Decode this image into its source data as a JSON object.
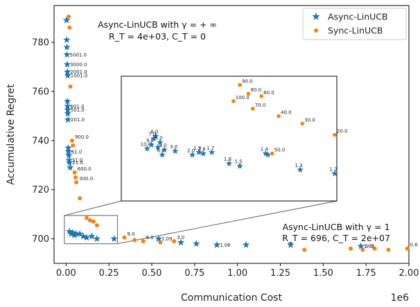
{
  "chart_data": {
    "type": "scatter",
    "xlabel": "Communication Cost",
    "ylabel": "Accumulative Regret",
    "x_multiplier_label": "1e6",
    "xlim": [
      -0.07,
      2.0
    ],
    "ylim": [
      690,
      795
    ],
    "x_ticks": [
      0.0,
      0.25,
      0.5,
      0.75,
      1.0,
      1.25,
      1.5,
      1.75,
      2.0
    ],
    "x_tick_labels": [
      "0.00",
      "0.25",
      "0.50",
      "0.75",
      "1.00",
      "1.25",
      "1.50",
      "1.75",
      "2.00"
    ],
    "y_ticks": [
      700,
      720,
      740,
      760,
      780
    ],
    "y_tick_labels": [
      "700",
      "720",
      "740",
      "760",
      "780"
    ],
    "legend_position": "top-right",
    "colors": {
      "async": "#1f77b4",
      "sync": "#ff7f0e"
    },
    "annotations": [
      {
        "text": "Async-LinUCB with γ = + ∞",
        "position": "top-center"
      },
      {
        "text": "R_T = 4e+03, C_T = 0",
        "position": "top-center"
      },
      {
        "text": "Async-LinUCB with γ = 1",
        "position": "lower-right"
      },
      {
        "text": "R_T = 696, C_T = 2e+07",
        "position": "lower-right"
      }
    ],
    "series": [
      {
        "name": "Async-LinUCB",
        "marker": "star",
        "points": [
          {
            "x": 0.003,
            "y": 789,
            "label": ""
          },
          {
            "x": 0.004,
            "y": 781,
            "label": ""
          },
          {
            "x": 0.005,
            "y": 778,
            "label": ""
          },
          {
            "x": 0.005,
            "y": 775,
            "label": "5001.0"
          },
          {
            "x": 0.007,
            "y": 771,
            "label": "3000.0"
          },
          {
            "x": 0.008,
            "y": 768,
            "label": "2001.0"
          },
          {
            "x": 0.01,
            "y": 766.5,
            "label": "1001.0"
          },
          {
            "x": 0.008,
            "y": 756,
            "label": ""
          },
          {
            "x": 0.009,
            "y": 754,
            "label": "601.0"
          },
          {
            "x": 0.01,
            "y": 752.5,
            "label": "501.0"
          },
          {
            "x": 0.01,
            "y": 751,
            "label": ""
          },
          {
            "x": 0.011,
            "y": 748.5,
            "label": "201.0"
          },
          {
            "x": 0.013,
            "y": 737,
            "label": ""
          },
          {
            "x": 0.014,
            "y": 735.5,
            "label": "61.0"
          },
          {
            "x": 0.016,
            "y": 734,
            "label": ""
          },
          {
            "x": 0.018,
            "y": 732,
            "label": "31.0"
          },
          {
            "x": 0.02,
            "y": 731,
            "label": "21.0"
          },
          {
            "x": 0.024,
            "y": 729,
            "label": ""
          },
          {
            "x": 0.02,
            "y": 703,
            "label": ""
          },
          {
            "x": 0.03,
            "y": 702,
            "label": ""
          },
          {
            "x": 0.04,
            "y": 702.5,
            "label": ""
          },
          {
            "x": 0.05,
            "y": 701.5,
            "label": ""
          },
          {
            "x": 0.06,
            "y": 702,
            "label": ""
          },
          {
            "x": 0.08,
            "y": 702,
            "label": ""
          },
          {
            "x": 0.1,
            "y": 701,
            "label": ""
          },
          {
            "x": 0.12,
            "y": 700.5,
            "label": ""
          },
          {
            "x": 0.15,
            "y": 701,
            "label": ""
          },
          {
            "x": 0.18,
            "y": 700,
            "label": ""
          },
          {
            "x": 0.28,
            "y": 700,
            "label": ""
          },
          {
            "x": 0.54,
            "y": 700,
            "label": "1.09"
          },
          {
            "x": 0.67,
            "y": 698.5,
            "label": ""
          },
          {
            "x": 0.76,
            "y": 698,
            "label": ""
          },
          {
            "x": 0.88,
            "y": 697.5,
            "label": "1.06"
          },
          {
            "x": 1.05,
            "y": 697.5,
            "label": ""
          },
          {
            "x": 1.31,
            "y": 697.5,
            "label": ""
          },
          {
            "x": 1.72,
            "y": 697,
            "label": "1.03"
          }
        ]
      },
      {
        "name": "Sync-LinUCB",
        "marker": "circle",
        "points": [
          {
            "x": 0.015,
            "y": 790.5,
            "label": ""
          },
          {
            "x": 0.02,
            "y": 786,
            "label": ""
          },
          {
            "x": 0.025,
            "y": 762,
            "label": ""
          },
          {
            "x": 0.035,
            "y": 740,
            "label": "900.0"
          },
          {
            "x": 0.04,
            "y": 738,
            "label": ""
          },
          {
            "x": 0.05,
            "y": 727,
            "label": "600.0"
          },
          {
            "x": 0.055,
            "y": 725,
            "label": ""
          },
          {
            "x": 0.06,
            "y": 723,
            "label": "300.0"
          },
          {
            "x": 0.08,
            "y": 716.5,
            "label": ""
          },
          {
            "x": 0.12,
            "y": 708.5,
            "label": ""
          },
          {
            "x": 0.14,
            "y": 707.5,
            "label": ""
          },
          {
            "x": 0.16,
            "y": 707,
            "label": ""
          },
          {
            "x": 0.18,
            "y": 705.5,
            "label": ""
          },
          {
            "x": 0.34,
            "y": 700.5,
            "label": "9.0"
          },
          {
            "x": 0.4,
            "y": 699.5,
            "label": ""
          },
          {
            "x": 0.45,
            "y": 699,
            "label": "6.0"
          },
          {
            "x": 0.55,
            "y": 698.5,
            "label": ""
          },
          {
            "x": 0.63,
            "y": 699,
            "label": "3.0"
          },
          {
            "x": 1.39,
            "y": 695.5,
            "label": ""
          },
          {
            "x": 1.66,
            "y": 696,
            "label": ""
          },
          {
            "x": 1.73,
            "y": 695.5,
            "label": "0.9"
          },
          {
            "x": 1.8,
            "y": 696,
            "label": ""
          },
          {
            "x": 1.88,
            "y": 695.5,
            "label": ""
          },
          {
            "x": 1.99,
            "y": 696,
            "label": "0.6"
          }
        ]
      }
    ],
    "inset": {
      "description_zoom_region": {
        "xlim": [
          -0.01,
          0.3
        ],
        "ylim": [
          698,
          709.5
        ]
      },
      "async_points": [
        {
          "lx": 0.12,
          "ly": 0.42,
          "label": "10.0"
        },
        {
          "lx": 0.14,
          "ly": 0.45,
          "label": "9.0"
        },
        {
          "lx": 0.16,
          "ly": 0.52,
          "label": "8.0"
        },
        {
          "lx": 0.17,
          "ly": 0.43,
          "label": ""
        },
        {
          "lx": 0.15,
          "ly": 0.5,
          "label": "7.0"
        },
        {
          "lx": 0.18,
          "ly": 0.47,
          "label": "5.0"
        },
        {
          "lx": 0.19,
          "ly": 0.37,
          "label": "6.0"
        },
        {
          "lx": 0.2,
          "ly": 0.41,
          "label": "4.0"
        },
        {
          "lx": 0.25,
          "ly": 0.4,
          "label": "3.0"
        },
        {
          "lx": 0.33,
          "ly": 0.37,
          "label": "2.0"
        },
        {
          "lx": 0.36,
          "ly": 0.39,
          "label": "1.9"
        },
        {
          "lx": 0.38,
          "ly": 0.38,
          "label": "1.8"
        },
        {
          "lx": 0.42,
          "ly": 0.39,
          "label": "1.7"
        },
        {
          "lx": 0.5,
          "ly": 0.3,
          "label": "1.6"
        },
        {
          "lx": 0.55,
          "ly": 0.28,
          "label": "1.5"
        },
        {
          "lx": 0.67,
          "ly": 0.38,
          "label": "1.4"
        },
        {
          "lx": 0.68,
          "ly": 0.37,
          "label": ""
        },
        {
          "lx": 0.83,
          "ly": 0.25,
          "label": "1.3"
        },
        {
          "lx": 0.99,
          "ly": 0.22,
          "label": "1.2"
        }
      ],
      "sync_points": [
        {
          "lx": 0.55,
          "ly": 0.93,
          "label": "90.0"
        },
        {
          "lx": 0.59,
          "ly": 0.86,
          "label": "80.0"
        },
        {
          "lx": 0.65,
          "ly": 0.84,
          "label": "60.0"
        },
        {
          "lx": 0.52,
          "ly": 0.8,
          "label": "100.0"
        },
        {
          "lx": 0.61,
          "ly": 0.74,
          "label": "70.0"
        },
        {
          "lx": 0.73,
          "ly": 0.68,
          "label": "40.0"
        },
        {
          "lx": 0.84,
          "ly": 0.62,
          "label": "30.0"
        },
        {
          "lx": 0.99,
          "ly": 0.53,
          "label": "20.0"
        },
        {
          "lx": 0.7,
          "ly": 0.38,
          "label": "50.0"
        }
      ]
    }
  }
}
